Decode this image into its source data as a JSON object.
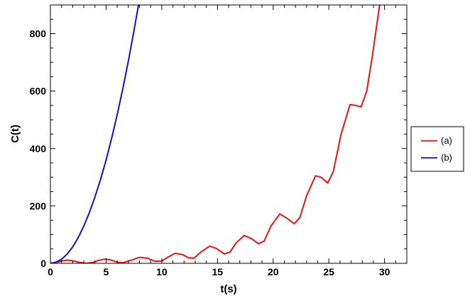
{
  "chart_data": {
    "type": "line",
    "xlabel": "t(s)",
    "ylabel": "C(t)",
    "xlim": [
      0,
      32
    ],
    "ylim": [
      0,
      900
    ],
    "xticks": [
      0,
      5,
      10,
      15,
      20,
      25,
      30
    ],
    "yticks": [
      0,
      200,
      400,
      600,
      800
    ],
    "grid": false,
    "legend_position": "right",
    "series": [
      {
        "name": "(a)",
        "color": "#ee1111",
        "points": [
          [
            0,
            0
          ],
          [
            0.5,
            3
          ],
          [
            1,
            8
          ],
          [
            1.5,
            11
          ],
          [
            2,
            9
          ],
          [
            2.5,
            4
          ],
          [
            3.2,
            0
          ],
          [
            3.8,
            3
          ],
          [
            4.3,
            10
          ],
          [
            4.9,
            15
          ],
          [
            5.5,
            11
          ],
          [
            6,
            4
          ],
          [
            6.5,
            2
          ],
          [
            7.2,
            10
          ],
          [
            8,
            21
          ],
          [
            8.7,
            18
          ],
          [
            9.4,
            7
          ],
          [
            10,
            8
          ],
          [
            10.5,
            20
          ],
          [
            11.2,
            35
          ],
          [
            11.9,
            30
          ],
          [
            12.4,
            19
          ],
          [
            12.9,
            18
          ],
          [
            13.5,
            39
          ],
          [
            14.3,
            60
          ],
          [
            14.9,
            52
          ],
          [
            15.6,
            33
          ],
          [
            16.1,
            38
          ],
          [
            16.7,
            72
          ],
          [
            17.4,
            97
          ],
          [
            18.1,
            85
          ],
          [
            18.7,
            68
          ],
          [
            19.2,
            78
          ],
          [
            19.8,
            130
          ],
          [
            20.6,
            172
          ],
          [
            21.2,
            158
          ],
          [
            21.9,
            138
          ],
          [
            22.4,
            160
          ],
          [
            23,
            235
          ],
          [
            23.8,
            305
          ],
          [
            24.3,
            300
          ],
          [
            24.9,
            280
          ],
          [
            25.4,
            320
          ],
          [
            26.1,
            450
          ],
          [
            26.9,
            553
          ],
          [
            27.4,
            550
          ],
          [
            27.9,
            545
          ],
          [
            28.4,
            600
          ],
          [
            28.9,
            720
          ],
          [
            29.3,
            830
          ],
          [
            29.6,
            910
          ]
        ]
      },
      {
        "name": "(b)",
        "color": "#1111cc",
        "points": [
          [
            0,
            0
          ],
          [
            0.5,
            4
          ],
          [
            1,
            14
          ],
          [
            1.5,
            32
          ],
          [
            2,
            57
          ],
          [
            2.5,
            90
          ],
          [
            3,
            130
          ],
          [
            3.5,
            177
          ],
          [
            4,
            231
          ],
          [
            4.5,
            292
          ],
          [
            5,
            360
          ],
          [
            5.5,
            436
          ],
          [
            6,
            518
          ],
          [
            6.5,
            608
          ],
          [
            7,
            705
          ],
          [
            7.5,
            810
          ],
          [
            8,
            920
          ]
        ]
      }
    ]
  }
}
